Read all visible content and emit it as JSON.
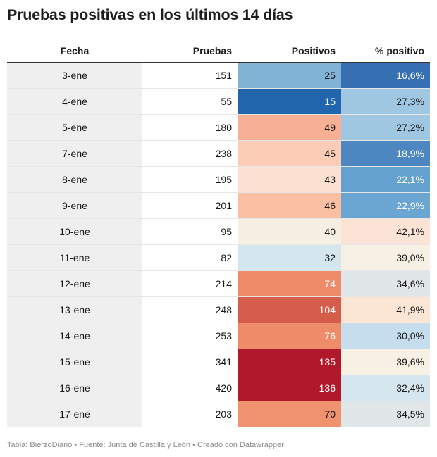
{
  "title": "Pruebas positivas en los últimos 14 días",
  "chart_data": {
    "type": "table",
    "columns": [
      "Fecha",
      "Pruebas",
      "Positivos",
      "% positivo"
    ],
    "rows": [
      {
        "fecha": "3-ene",
        "pruebas": "151",
        "positivos": "25",
        "pct": "16,6%",
        "pos_color": "#81b3d6",
        "pos_text": "#181818",
        "pct_color": "#3670b3",
        "pct_text": "#ffffff"
      },
      {
        "fecha": "4-ene",
        "pruebas": "55",
        "positivos": "15",
        "pct": "27,3%",
        "pos_color": "#2166ac",
        "pos_text": "#ffffff",
        "pct_color": "#a0c7e2",
        "pct_text": "#181818"
      },
      {
        "fecha": "5-ene",
        "pruebas": "180",
        "positivos": "49",
        "pct": "27,2%",
        "pos_color": "#f7b093",
        "pos_text": "#181818",
        "pct_color": "#a0c7e2",
        "pct_text": "#181818"
      },
      {
        "fecha": "7-ene",
        "pruebas": "238",
        "positivos": "45",
        "pct": "18,9%",
        "pos_color": "#fbcdb6",
        "pos_text": "#181818",
        "pct_color": "#4c87c1",
        "pct_text": "#ffffff"
      },
      {
        "fecha": "8-ene",
        "pruebas": "195",
        "positivos": "43",
        "pct": "22,1%",
        "pos_color": "#fce1d2",
        "pos_text": "#181818",
        "pct_color": "#64a1ce",
        "pct_text": "#ffffff"
      },
      {
        "fecha": "9-ene",
        "pruebas": "201",
        "positivos": "46",
        "pct": "22,9%",
        "pos_color": "#fbbfa3",
        "pos_text": "#181818",
        "pct_color": "#6aa6d1",
        "pct_text": "#ffffff"
      },
      {
        "fecha": "10-ene",
        "pruebas": "95",
        "positivos": "40",
        "pct": "42,1%",
        "pos_color": "#f8efe4",
        "pos_text": "#181818",
        "pct_color": "#fbe4d5",
        "pct_text": "#181818"
      },
      {
        "fecha": "11-ene",
        "pruebas": "82",
        "positivos": "32",
        "pct": "39,0%",
        "pos_color": "#d4e6ee",
        "pos_text": "#181818",
        "pct_color": "#f6f0e5",
        "pct_text": "#181818"
      },
      {
        "fecha": "12-ene",
        "pruebas": "214",
        "positivos": "74",
        "pct": "34,6%",
        "pos_color": "#ee8c69",
        "pos_text": "#ffffff",
        "pct_color": "#e1e7e9",
        "pct_text": "#181818"
      },
      {
        "fecha": "13-ene",
        "pruebas": "248",
        "positivos": "104",
        "pct": "41,9%",
        "pos_color": "#d45d4b",
        "pos_text": "#ffffff",
        "pct_color": "#fbe5d4",
        "pct_text": "#181818"
      },
      {
        "fecha": "14-ene",
        "pruebas": "253",
        "positivos": "76",
        "pct": "30,0%",
        "pos_color": "#ee8c69",
        "pos_text": "#ffffff",
        "pct_color": "#c5dded",
        "pct_text": "#181818"
      },
      {
        "fecha": "15-ene",
        "pruebas": "341",
        "positivos": "135",
        "pct": "39,6%",
        "pos_color": "#b2182b",
        "pos_text": "#ffffff",
        "pct_color": "#f6f0e5",
        "pct_text": "#181818"
      },
      {
        "fecha": "16-ene",
        "pruebas": "420",
        "positivos": "136",
        "pct": "32,4%",
        "pos_color": "#b2182b",
        "pos_text": "#ffffff",
        "pct_color": "#d6e6ef",
        "pct_text": "#181818"
      },
      {
        "fecha": "17-ene",
        "pruebas": "203",
        "positivos": "70",
        "pct": "34,5%",
        "pos_color": "#f0916f",
        "pos_text": "#181818",
        "pct_color": "#e1e7e9",
        "pct_text": "#181818"
      }
    ]
  },
  "footer": "Tabla: BierzoDiario • Fuente: Junta de Castilla y León • Creado con Datawrapper"
}
